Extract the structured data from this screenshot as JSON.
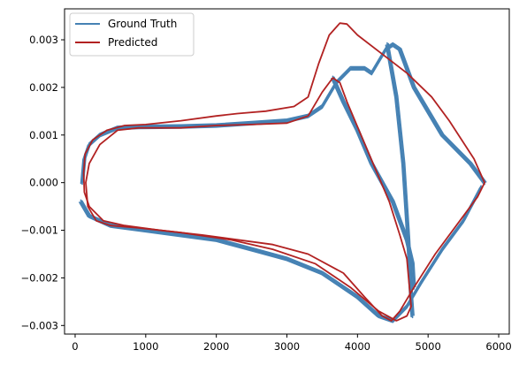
{
  "chart_data": {
    "type": "line",
    "title": "",
    "xlabel": "",
    "ylabel": "",
    "xlim": [
      -150,
      6150
    ],
    "ylim": [
      -0.00318,
      0.00365
    ],
    "xticks": [
      0,
      1000,
      2000,
      3000,
      4000,
      5000,
      6000
    ],
    "xtick_labels": [
      "0",
      "1000",
      "2000",
      "3000",
      "4000",
      "5000",
      "6000"
    ],
    "yticks": [
      -0.003,
      -0.002,
      -0.001,
      0.0,
      0.001,
      0.002,
      0.003
    ],
    "ytick_labels": [
      "−0.003",
      "−0.002",
      "−0.001",
      "0.000",
      "0.001",
      "0.002",
      "0.003"
    ],
    "grid": false,
    "legend_position": "upper-left",
    "series": [
      {
        "name": "Ground Truth",
        "color": "#4682b4",
        "loops": [
          {
            "upper_outer": [
              [
                100,
                0.0
              ],
              [
                130,
                0.0005
              ],
              [
                200,
                0.0008
              ],
              [
                350,
                0.001
              ],
              [
                600,
                0.00115
              ],
              [
                900,
                0.00117
              ],
              [
                1500,
                0.00118
              ],
              [
                2000,
                0.0012
              ],
              [
                2500,
                0.00125
              ],
              [
                3000,
                0.0013
              ],
              [
                3300,
                0.0014
              ],
              [
                3500,
                0.0016
              ],
              [
                3700,
                0.0021
              ],
              [
                3900,
                0.0024
              ],
              [
                4100,
                0.0024
              ],
              [
                4200,
                0.0023
              ],
              [
                4400,
                0.0028
              ],
              [
                4500,
                0.0029
              ],
              [
                4600,
                0.0028
              ],
              [
                4800,
                0.002
              ],
              [
                5200,
                0.001
              ],
              [
                5600,
                0.0004
              ],
              [
                5800,
                0.0
              ]
            ],
            "upper_inner": [
              [
                3650,
                0.0022
              ],
              [
                3800,
                0.0017
              ],
              [
                4000,
                0.0011
              ],
              [
                4200,
                0.0004
              ],
              [
                4500,
                -0.0004
              ],
              [
                4700,
                -0.0012
              ],
              [
                4780,
                -0.0017
              ],
              [
                4800,
                -0.0022
              ]
            ],
            "lower": [
              [
                80,
                -0.0004
              ],
              [
                200,
                -0.0007
              ],
              [
                500,
                -0.0009
              ],
              [
                1000,
                -0.001
              ],
              [
                1500,
                -0.0011
              ],
              [
                2000,
                -0.0012
              ],
              [
                2500,
                -0.0014
              ],
              [
                3000,
                -0.0016
              ],
              [
                3500,
                -0.0019
              ],
              [
                4000,
                -0.0024
              ],
              [
                4300,
                -0.0028
              ],
              [
                4500,
                -0.0029
              ],
              [
                4700,
                -0.0026
              ],
              [
                4900,
                -0.0021
              ],
              [
                5200,
                -0.0014
              ],
              [
                5500,
                -0.0008
              ],
              [
                5750,
                -0.0001
              ]
            ],
            "lower_inner": [
              [
                4420,
                0.0029
              ],
              [
                4550,
                0.0018
              ],
              [
                4650,
                0.0004
              ],
              [
                4720,
                -0.0012
              ],
              [
                4760,
                -0.0024
              ],
              [
                4780,
                -0.0028
              ]
            ]
          }
        ]
      },
      {
        "name": "Predicted",
        "color": "#b22222",
        "outer": [
          [
            3750,
            0.00335
          ],
          [
            3600,
            0.0031
          ],
          [
            3450,
            0.0025
          ],
          [
            3300,
            0.0018
          ],
          [
            3100,
            0.0016
          ],
          [
            2700,
            0.0015
          ],
          [
            2300,
            0.00145
          ],
          [
            2000,
            0.0014
          ],
          [
            1500,
            0.0013
          ],
          [
            1000,
            0.00122
          ],
          [
            700,
            0.0012
          ],
          [
            450,
            0.0011
          ],
          [
            250,
            0.0009
          ],
          [
            140,
            0.0006
          ],
          [
            120,
            0.0002
          ],
          [
            130,
            -0.0002
          ],
          [
            200,
            -0.0005
          ],
          [
            400,
            -0.0008
          ],
          [
            700,
            -0.0009
          ],
          [
            1200,
            -0.001
          ],
          [
            1800,
            -0.0011
          ],
          [
            2300,
            -0.0012
          ],
          [
            2800,
            -0.0013
          ],
          [
            3300,
            -0.0015
          ],
          [
            3800,
            -0.0019
          ],
          [
            4100,
            -0.0024
          ],
          [
            4350,
            -0.0028
          ],
          [
            4480,
            -0.0029
          ],
          [
            4600,
            -0.0027
          ],
          [
            4800,
            -0.0022
          ],
          [
            5100,
            -0.0015
          ],
          [
            5400,
            -0.0009
          ],
          [
            5700,
            -0.0003
          ],
          [
            5800,
            0.0
          ],
          [
            5650,
            0.0005
          ],
          [
            5300,
            0.0013
          ],
          [
            5050,
            0.0018
          ],
          [
            4700,
            0.0023
          ],
          [
            4350,
            0.0027
          ],
          [
            4000,
            0.0031
          ],
          [
            3850,
            0.00333
          ],
          [
            3750,
            0.00335
          ]
        ],
        "inner": [
          [
            150,
            0.0
          ],
          [
            200,
            0.0004
          ],
          [
            350,
            0.0008
          ],
          [
            600,
            0.0011
          ],
          [
            900,
            0.00115
          ],
          [
            1500,
            0.00115
          ],
          [
            2000,
            0.0012
          ],
          [
            2500,
            0.00122
          ],
          [
            3000,
            0.00125
          ],
          [
            3300,
            0.0014
          ],
          [
            3500,
            0.0019
          ],
          [
            3650,
            0.0022
          ],
          [
            3750,
            0.0021
          ],
          [
            3850,
            0.0017
          ],
          [
            4050,
            0.001
          ],
          [
            4250,
            0.0003
          ],
          [
            4450,
            -0.0004
          ],
          [
            4600,
            -0.0011
          ],
          [
            4700,
            -0.0016
          ],
          [
            4760,
            -0.0026
          ],
          [
            4700,
            -0.0028
          ],
          [
            4550,
            -0.0029
          ],
          [
            4300,
            -0.0027
          ],
          [
            3900,
            -0.0022
          ],
          [
            3400,
            -0.0017
          ],
          [
            2800,
            -0.0014
          ],
          [
            2200,
            -0.0012
          ],
          [
            1500,
            -0.00105
          ],
          [
            900,
            -0.00095
          ],
          [
            500,
            -0.0009
          ],
          [
            300,
            -0.0008
          ],
          [
            180,
            -0.0005
          ],
          [
            150,
            0.0
          ]
        ]
      }
    ]
  }
}
